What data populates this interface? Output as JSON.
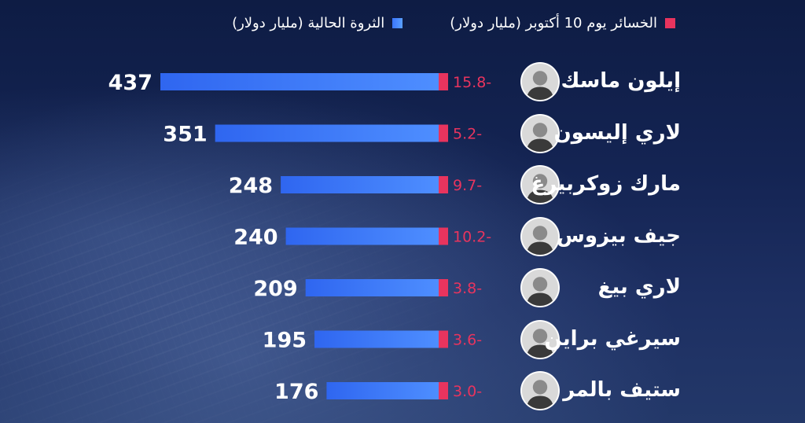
{
  "legend": {
    "loss_label": "الخسائر يوم 10 أكتوبر (مليار دولار)",
    "wealth_label": "الثروة الحالية (مليار دولار)",
    "loss_color": "#e8345e",
    "wealth_color": "#3a76ff"
  },
  "chart_data": {
    "type": "bar",
    "orientation": "horizontal",
    "categories": [
      "إيلون ماسك",
      "لاري إليسون",
      "مارك زوكربيرغ",
      "جيف بيزوس",
      "لاري بيغ",
      "سيرغي براين",
      "ستيف بالمر"
    ],
    "series": [
      {
        "name": "الثروة الحالية (مليار دولار)",
        "values": [
          437,
          351,
          248,
          240,
          209,
          195,
          176
        ]
      },
      {
        "name": "الخسائر يوم 10 أكتوبر (مليار دولار)",
        "values": [
          -15.8,
          -5.2,
          -9.7,
          -10.2,
          -3.8,
          -3.6,
          -3.0
        ]
      }
    ],
    "value_labels": [
      "437",
      "351",
      "248",
      "240",
      "209",
      "195",
      "176"
    ],
    "loss_labels": [
      "15.8-",
      "5.2-",
      "9.7-",
      "10.2-",
      "3.8-",
      "3.6-",
      "3.0-"
    ],
    "legend_position": "top-right",
    "grid": false
  },
  "icons": {
    "avatar": "person-avatar-icon"
  }
}
